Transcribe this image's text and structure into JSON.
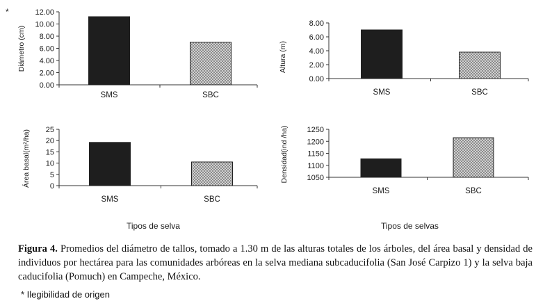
{
  "corner_mark": "*",
  "chart_data": [
    {
      "type": "bar",
      "categories": [
        "SMS",
        "SBC"
      ],
      "values": [
        11.2,
        7.0
      ],
      "ylabel": "Diámetro (cm)",
      "ylim": [
        0,
        12
      ],
      "yticks": [
        "0.00",
        "2.00",
        "4.00",
        "6.00",
        "8.00",
        "10.00",
        "12.00"
      ],
      "bar_fill": [
        "#1e1e1e",
        "pattern"
      ],
      "grid": false
    },
    {
      "type": "bar",
      "categories": [
        "SMS",
        "SBC"
      ],
      "values": [
        7.0,
        3.8
      ],
      "ylabel": "Altura (m)",
      "ylim": [
        0,
        8
      ],
      "yticks": [
        "0.00",
        "2.00",
        "4.00",
        "6.00",
        "8.00"
      ],
      "bar_fill": [
        "#1e1e1e",
        "pattern"
      ],
      "grid": false
    },
    {
      "type": "bar",
      "categories": [
        "SMS",
        "SBC"
      ],
      "values": [
        19.2,
        10.5
      ],
      "ylabel": "Área basal(m²/ha)",
      "ylim": [
        0,
        25
      ],
      "yticks": [
        "0",
        "5",
        "10",
        "15",
        "20",
        "25"
      ],
      "bar_fill": [
        "#1e1e1e",
        "pattern"
      ],
      "grid": false
    },
    {
      "type": "bar",
      "categories": [
        "SMS",
        "SBC"
      ],
      "values": [
        1127,
        1215
      ],
      "ylabel": "Densidad(ind /ha)",
      "ylim": [
        1050,
        1250
      ],
      "yticks": [
        "1050",
        "1100",
        "1150",
        "1200",
        "1250"
      ],
      "bar_fill": [
        "#1e1e1e",
        "pattern"
      ],
      "grid": false
    }
  ],
  "x_titles": [
    "Tipos de selva",
    "Tipos de selvas"
  ],
  "caption": {
    "label": "Figura 4.",
    "text": " Promedios del diámetro de tallos, tomado a 1.30 m de las alturas totales de los árboles, del área basal y densidad de individuos por hectárea para las comunidades arbóreas en la selva mediana subcaducifolia (San José Carpizo 1) y la selva baja caducifolia (Pomuch) en Campeche, México."
  },
  "note": "* Ilegibilidad de origen"
}
